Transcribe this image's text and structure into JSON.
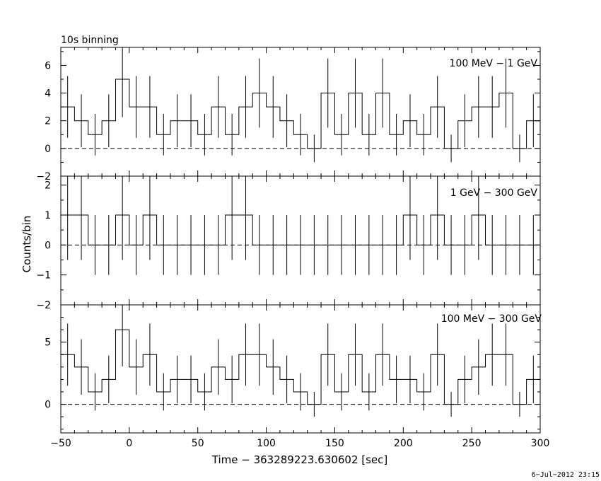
{
  "figure": {
    "top_caption": "10s binning",
    "ylabel": "Counts/bin",
    "xlabel": "Time − 363289223.630602 [sec]",
    "footer": "6−Jul−2012 23:15"
  },
  "chart_data": [
    {
      "type": "line",
      "label": "100 MeV − 1 GeV",
      "xlim": [
        -50,
        300
      ],
      "ylim": [
        -2,
        7.3
      ],
      "yticks": [
        -2,
        0,
        2,
        4,
        6
      ],
      "ytick_labels": [
        "−2",
        "0",
        "2",
        "4",
        "6"
      ],
      "yminor_step": 1,
      "bin_width": 10,
      "bin_start": -50,
      "values": [
        3,
        2,
        1,
        2,
        5,
        3,
        3,
        1,
        2,
        2,
        1,
        3,
        1,
        3,
        4,
        3,
        2,
        1,
        0,
        4,
        1,
        4,
        1,
        4,
        1,
        2,
        1,
        3,
        0,
        2,
        3,
        3,
        4,
        0,
        2
      ],
      "zero_line": true
    },
    {
      "type": "line",
      "label": "1 GeV − 300 GeV",
      "xlim": [
        -50,
        300
      ],
      "ylim": [
        -2,
        2.3
      ],
      "yticks": [
        -2,
        -1,
        0,
        1,
        2
      ],
      "ytick_labels": [
        "−2",
        "−1",
        "0",
        "1",
        "2"
      ],
      "yminor_step": 0.5,
      "bin_width": 10,
      "bin_start": -50,
      "values": [
        1,
        1,
        0,
        0,
        1,
        0,
        1,
        0,
        0,
        0,
        0,
        0,
        1,
        1,
        0,
        0,
        0,
        0,
        0,
        0,
        0,
        0,
        0,
        0,
        0,
        1,
        0,
        1,
        0,
        0,
        1,
        0,
        0,
        0,
        0
      ],
      "zero_line": true
    },
    {
      "type": "line",
      "label": "100 MeV − 300 GeV",
      "xlim": [
        -50,
        300
      ],
      "ylim": [
        -2.3,
        8.0
      ],
      "yticks": [
        0,
        5
      ],
      "ytick_labels": [
        "0",
        "5"
      ],
      "yminor_step": 1,
      "bin_width": 10,
      "bin_start": -50,
      "values": [
        4,
        3,
        1,
        2,
        6,
        3,
        4,
        1,
        2,
        2,
        1,
        3,
        2,
        4,
        4,
        3,
        2,
        1,
        0,
        4,
        1,
        4,
        1,
        4,
        2,
        2,
        1,
        4,
        0,
        2,
        3,
        4,
        4,
        0,
        2
      ],
      "zero_line": true,
      "xticks": [
        -50,
        0,
        50,
        100,
        150,
        200,
        250,
        300
      ],
      "xtick_labels": [
        "−50",
        "0",
        "50",
        "100",
        "150",
        "200",
        "250",
        "300"
      ],
      "xminor_step": 10
    }
  ]
}
